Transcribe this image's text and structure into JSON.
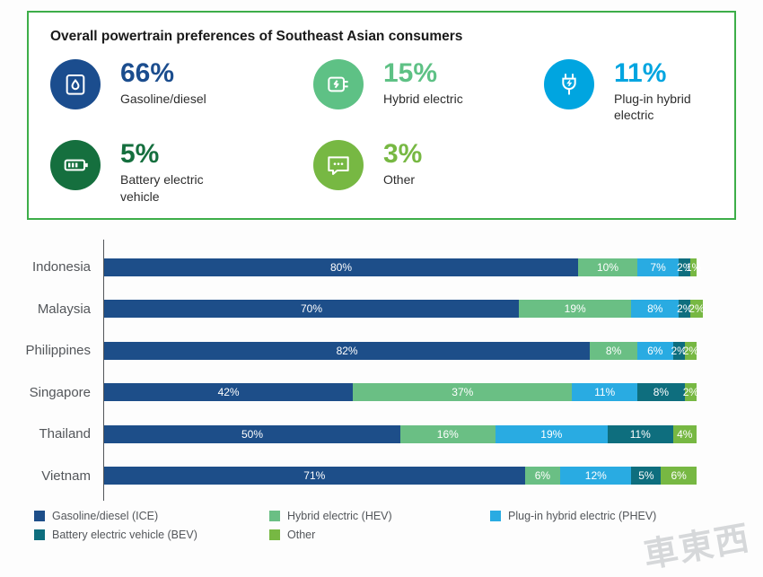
{
  "summary": {
    "title": "Overall powertrain preferences of Southeast Asian consumers",
    "stats": [
      {
        "key": "gasoline-diesel",
        "icon": "fuel-can-icon",
        "value": "66%",
        "label": "Gasoline/diesel",
        "color": "#1b4d8e"
      },
      {
        "key": "hybrid-electric",
        "icon": "hybrid-charging-icon",
        "value": "15%",
        "label": "Hybrid electric",
        "color": "#5ec185"
      },
      {
        "key": "plug-in-hybrid-electric",
        "icon": "plug-icon",
        "value": "11%",
        "label": "Plug-in hybrid electric",
        "color": "#00a5e0"
      },
      {
        "key": "battery-electric-vehicle",
        "icon": "battery-icon",
        "value": "5%",
        "label": "Battery electric vehicle",
        "color": "#156f3e"
      },
      {
        "key": "other",
        "icon": "speech-bubble-icon",
        "value": "3%",
        "label": "Other",
        "color": "#77b843"
      }
    ]
  },
  "chart_data": {
    "type": "bar",
    "orientation": "horizontal",
    "stacked": true,
    "categories": [
      "Indonesia",
      "Malaysia",
      "Philippines",
      "Singapore",
      "Thailand",
      "Vietnam"
    ],
    "series": [
      {
        "name": "Gasoline/diesel (ICE)",
        "color": "#1d4e89",
        "values": [
          80,
          70,
          82,
          42,
          50,
          71
        ]
      },
      {
        "name": "Hybrid electric (HEV)",
        "color": "#6abf84",
        "values": [
          10,
          19,
          8,
          37,
          16,
          6
        ]
      },
      {
        "name": "Plug-in hybrid electric (PHEV)",
        "color": "#29abe2",
        "values": [
          7,
          8,
          6,
          11,
          19,
          12
        ]
      },
      {
        "name": "Battery electric vehicle (BEV)",
        "color": "#0e6e7e",
        "values": [
          2,
          2,
          2,
          8,
          11,
          5
        ]
      },
      {
        "name": "Other",
        "color": "#77b843",
        "values": [
          1,
          2,
          2,
          2,
          4,
          6
        ]
      }
    ],
    "xlim": [
      0,
      100
    ],
    "value_label_suffix": "%",
    "legend_position": "bottom",
    "grid": false
  },
  "watermark": "車東西"
}
